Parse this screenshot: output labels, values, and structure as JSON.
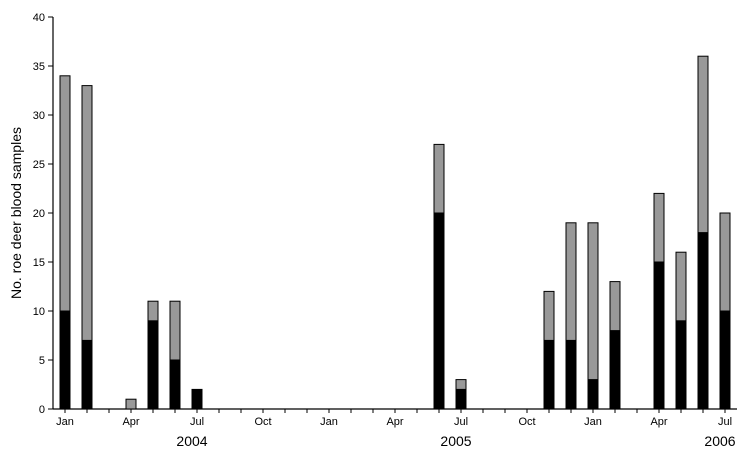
{
  "chart_data": {
    "type": "bar",
    "stacked": true,
    "ylabel": "No. roe deer blood samples",
    "xlabel": "",
    "ylim": [
      0,
      40
    ],
    "yticks": [
      0,
      5,
      10,
      15,
      20,
      25,
      30,
      35,
      40
    ],
    "grid": false,
    "month_ticks": [
      {
        "label": "Jan",
        "month": "2004-01"
      },
      {
        "label": "Apr",
        "month": "2004-04"
      },
      {
        "label": "Jul",
        "month": "2004-07"
      },
      {
        "label": "Oct",
        "month": "2004-10"
      },
      {
        "label": "Jan",
        "month": "2005-01"
      },
      {
        "label": "Apr",
        "month": "2005-04"
      },
      {
        "label": "Jul",
        "month": "2005-07"
      },
      {
        "label": "Oct",
        "month": "2005-10"
      },
      {
        "label": "Jan",
        "month": "2006-01"
      },
      {
        "label": "Apr",
        "month": "2006-04"
      },
      {
        "label": "Jul",
        "month": "2006-07"
      }
    ],
    "year_labels": [
      {
        "label": "2004",
        "month": "2004-07"
      },
      {
        "label": "2005",
        "month": "2005-07"
      },
      {
        "label": "2006",
        "month": "2006-07"
      }
    ],
    "colors": {
      "lower": "#000000",
      "upper": "#999999"
    },
    "months": [
      "2004-01",
      "2004-02",
      "2004-04",
      "2004-05",
      "2004-06",
      "2004-07",
      "2005-06",
      "2005-07",
      "2005-11",
      "2005-12",
      "2006-01",
      "2006-02",
      "2006-04",
      "2006-05",
      "2006-06",
      "2006-07"
    ],
    "series": [
      {
        "values": [
          10,
          7,
          0,
          9,
          5,
          2,
          20,
          2,
          7,
          7,
          3,
          8,
          15,
          9,
          18,
          10
        ]
      },
      {
        "values": [
          24,
          26,
          1,
          2,
          6,
          0,
          7,
          1,
          5,
          12,
          16,
          5,
          7,
          7,
          18,
          10
        ]
      }
    ]
  }
}
